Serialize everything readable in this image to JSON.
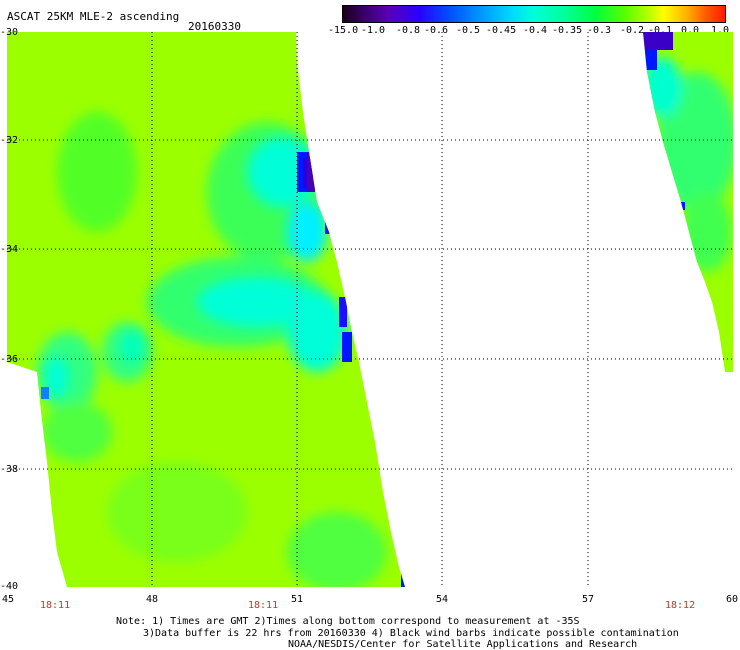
{
  "title": "ASCAT 25KM MLE-2 ascending",
  "date": "20160330",
  "colorbar": {
    "labels": [
      "-15.0",
      "-1.0",
      "-0.8",
      "-0.6",
      "-0.5",
      "-0.45",
      "-0.4",
      "-0.35",
      "-0.3",
      "-0.2",
      "-0.1",
      "0.0",
      "1.0"
    ]
  },
  "axes": {
    "y_labels": [
      "-30",
      "-32",
      "-34",
      "-36",
      "-38",
      "-40"
    ],
    "x_labels": [
      "45",
      "48",
      "51",
      "54",
      "57",
      "60"
    ]
  },
  "times": [
    "18:11",
    "18:11",
    "18:12"
  ],
  "notes": {
    "line1": "Note: 1) Times are GMT 2)Times along bottom correspond to measurement at -35S",
    "line2": "3)Data buffer is 22 hrs from 20160330 4) Black wind barbs indicate possible contamination",
    "line3": "NOAA/NESDIS/Center for Satellite Applications and Research"
  },
  "colors": {
    "background_field": "#9cff00",
    "cyan": "#00ffe0",
    "blue": "#0018ff",
    "purple": "#4a00b4",
    "time_label": "#c0392b"
  }
}
